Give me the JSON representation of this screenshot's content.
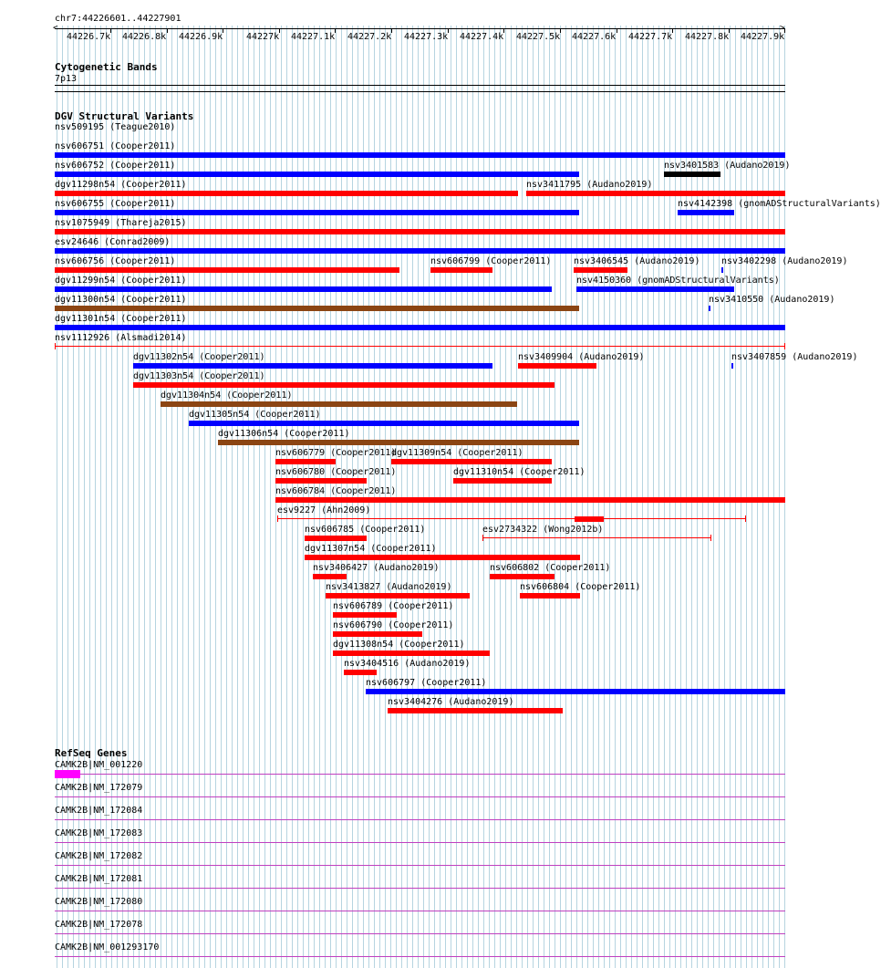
{
  "colors": {
    "grid": "#b6d4e0",
    "red": "#ff0000",
    "blue": "#0000ff",
    "brown": "#8b4513",
    "black": "#000000",
    "gene": "#c040c0",
    "exon": "#ff00ff"
  },
  "ruler": {
    "position": "chr7:44226601..44227901",
    "ticks": [
      "44226.7k",
      "44226.8k",
      "44226.9k",
      "44227k",
      "44227.1k",
      "44227.2k",
      "44227.3k",
      "44227.4k",
      "44227.5k",
      "44227.6k",
      "44227.7k",
      "44227.8k",
      "44227.9k"
    ]
  },
  "cytobands": {
    "title": "Cytogenetic Bands",
    "band": "7p13"
  },
  "dgv": {
    "title": "DGV Structural Variants",
    "features": [
      {
        "label": "nsv509195 (Teague2010)",
        "row": 0,
        "start": 44226601,
        "end": 44226601,
        "color": "red",
        "style": "none"
      },
      {
        "label": "nsv606751 (Cooper2011)",
        "row": 1,
        "start": 44226601,
        "end": 44227901,
        "color": "blue",
        "style": "bar"
      },
      {
        "label": "nsv606752 (Cooper2011)",
        "row": 2,
        "start": 44226601,
        "end": 44227535,
        "color": "blue",
        "style": "bar"
      },
      {
        "label": "nsv3401583 (Audano2019)",
        "row": 2,
        "start": 44227685,
        "end": 44227785,
        "color": "black",
        "style": "bar"
      },
      {
        "label": "dgv11298n54 (Cooper2011)",
        "row": 3,
        "start": 44226601,
        "end": 44227425,
        "color": "red",
        "style": "bar"
      },
      {
        "label": "nsv3411795 (Audano2019)",
        "row": 3,
        "start": 44227440,
        "end": 44227901,
        "color": "red",
        "style": "bar"
      },
      {
        "label": "nsv606755 (Cooper2011)",
        "row": 4,
        "start": 44226601,
        "end": 44227535,
        "color": "blue",
        "style": "bar"
      },
      {
        "label": "nsv4142398 (gnomADStructuralVariants)",
        "row": 4,
        "start": 44227710,
        "end": 44227810,
        "color": "blue",
        "style": "bar"
      },
      {
        "label": "nsv1075949 (Thareja2015)",
        "row": 5,
        "start": 44226601,
        "end": 44227901,
        "color": "red",
        "style": "bar"
      },
      {
        "label": "esv24646 (Conrad2009)",
        "row": 6,
        "start": 44226601,
        "end": 44227901,
        "color": "blue",
        "style": "bar"
      },
      {
        "label": "nsv606756 (Cooper2011)",
        "row": 7,
        "start": 44226601,
        "end": 44227215,
        "color": "red",
        "style": "bar"
      },
      {
        "label": "nsv606799 (Cooper2011)",
        "row": 7,
        "start": 44227270,
        "end": 44227380,
        "color": "red",
        "style": "bar"
      },
      {
        "label": "nsv3406545 (Audano2019)",
        "row": 7,
        "start": 44227525,
        "end": 44227620,
        "color": "red",
        "style": "bar"
      },
      {
        "label": "nsv3402298 (Audano2019)",
        "row": 7,
        "start": 44227788,
        "end": 44227790,
        "color": "blue",
        "style": "bar"
      },
      {
        "label": "dgv11299n54 (Cooper2011)",
        "row": 8,
        "start": 44226601,
        "end": 44227485,
        "color": "blue",
        "style": "bar"
      },
      {
        "label": "nsv4150360 (gnomADStructuralVariants)",
        "row": 8,
        "start": 44227530,
        "end": 44227810,
        "color": "blue",
        "style": "bar"
      },
      {
        "label": "dgv11300n54 (Cooper2011)",
        "row": 9,
        "start": 44226601,
        "end": 44227535,
        "color": "brown",
        "style": "bar"
      },
      {
        "label": "nsv3410550 (Audano2019)",
        "row": 9,
        "start": 44227765,
        "end": 44227767,
        "color": "blue",
        "style": "bar"
      },
      {
        "label": "dgv11301n54 (Cooper2011)",
        "row": 10,
        "start": 44226601,
        "end": 44227901,
        "color": "blue",
        "style": "bar"
      },
      {
        "label": "nsv1112926 (Alsmadi2014)",
        "row": 11,
        "start": 44226601,
        "end": 44227901,
        "color": "red",
        "style": "line"
      },
      {
        "label": "dgv11302n54 (Cooper2011)",
        "row": 12,
        "start": 44226740,
        "end": 44227380,
        "color": "blue",
        "style": "bar"
      },
      {
        "label": "nsv3409904 (Audano2019)",
        "row": 12,
        "start": 44227425,
        "end": 44227565,
        "color": "red",
        "style": "bar"
      },
      {
        "label": "nsv3407859 (Audano2019)",
        "row": 12,
        "start": 44227806,
        "end": 44227808,
        "color": "blue",
        "style": "bar"
      },
      {
        "label": "dgv11303n54 (Cooper2011)",
        "row": 13,
        "start": 44226740,
        "end": 44227490,
        "color": "red",
        "style": "bar"
      },
      {
        "label": "dgv11304n54 (Cooper2011)",
        "row": 14,
        "start": 44226790,
        "end": 44227425,
        "color": "brown",
        "style": "bar"
      },
      {
        "label": "dgv11305n54 (Cooper2011)",
        "row": 15,
        "start": 44226840,
        "end": 44227535,
        "color": "blue",
        "style": "bar"
      },
      {
        "label": "dgv11306n54 (Cooper2011)",
        "row": 16,
        "start": 44226892,
        "end": 44227535,
        "color": "brown",
        "style": "bar"
      },
      {
        "label": "nsv606779 (Cooper2011)",
        "row": 17,
        "start": 44226993,
        "end": 44227100,
        "color": "red",
        "style": "bar"
      },
      {
        "label": "dgv11309n54 (Cooper2011)",
        "row": 17,
        "start": 44227200,
        "end": 44227485,
        "color": "red",
        "style": "bar"
      },
      {
        "label": "nsv606780 (Cooper2011)",
        "row": 18,
        "start": 44226993,
        "end": 44227155,
        "color": "red",
        "style": "bar"
      },
      {
        "label": "dgv11310n54 (Cooper2011)",
        "row": 18,
        "start": 44227310,
        "end": 44227485,
        "color": "red",
        "style": "bar"
      },
      {
        "label": "nsv606784 (Cooper2011)",
        "row": 19,
        "start": 44226993,
        "end": 44227901,
        "color": "red",
        "style": "bar"
      },
      {
        "label": "esv9227 (Ahn2009)",
        "row": 20,
        "start": 44226997,
        "end": 44227832,
        "color": "red",
        "style": "line"
      },
      {
        "label": "nsv606785 (Cooper2011)",
        "row": 21,
        "start": 44227045,
        "end": 44227155,
        "color": "red",
        "style": "bar"
      },
      {
        "label": "esv2734322 (Wong2012b)",
        "row": 21,
        "start": 44227362,
        "end": 44227770,
        "color": "red",
        "style": "line"
      },
      {
        "label": "dgv11307n54 (Cooper2011)",
        "row": 22,
        "start": 44227045,
        "end": 44227535,
        "color": "red",
        "style": "bar"
      },
      {
        "label": "nsv3406427 (Audano2019)",
        "row": 23,
        "start": 44227060,
        "end": 44227120,
        "color": "red",
        "style": "bar"
      },
      {
        "label": "nsv606802 (Cooper2011)",
        "row": 23,
        "start": 44227375,
        "end": 44227490,
        "color": "red",
        "style": "bar"
      },
      {
        "label": "nsv3413827 (Audano2019)",
        "row": 24,
        "start": 44227083,
        "end": 44227340,
        "color": "red",
        "style": "bar"
      },
      {
        "label": "nsv606804 (Cooper2011)",
        "row": 24,
        "start": 44227428,
        "end": 44227535,
        "color": "red",
        "style": "bar"
      },
      {
        "label": "nsv606789 (Cooper2011)",
        "row": 25,
        "start": 44227096,
        "end": 44227210,
        "color": "red",
        "style": "bar"
      },
      {
        "label": "nsv606790 (Cooper2011)",
        "row": 26,
        "start": 44227096,
        "end": 44227255,
        "color": "red",
        "style": "bar"
      },
      {
        "label": "dgv11308n54 (Cooper2011)",
        "row": 27,
        "start": 44227096,
        "end": 44227375,
        "color": "red",
        "style": "bar"
      },
      {
        "label": "nsv3404516 (Audano2019)",
        "row": 28,
        "start": 44227116,
        "end": 44227175,
        "color": "red",
        "style": "bar"
      },
      {
        "label": "nsv606797 (Cooper2011)",
        "row": 29,
        "start": 44227155,
        "end": 44227901,
        "color": "blue",
        "style": "bar"
      },
      {
        "label": "nsv3404276 (Audano2019)",
        "row": 30,
        "start": 44227194,
        "end": 44227505,
        "color": "red",
        "style": "bar"
      }
    ]
  },
  "refseq": {
    "title": "RefSeq Genes",
    "genes": [
      {
        "label": "CAMK2B|NM_001220",
        "exon": true
      },
      {
        "label": "CAMK2B|NM_172079",
        "exon": false
      },
      {
        "label": "CAMK2B|NM_172084",
        "exon": false
      },
      {
        "label": "CAMK2B|NM_172083",
        "exon": false
      },
      {
        "label": "CAMK2B|NM_172082",
        "exon": false
      },
      {
        "label": "CAMK2B|NM_172081",
        "exon": false
      },
      {
        "label": "CAMK2B|NM_172080",
        "exon": false
      },
      {
        "label": "CAMK2B|NM_172078",
        "exon": false
      },
      {
        "label": "CAMK2B|NM_001293170",
        "exon": false
      }
    ]
  }
}
